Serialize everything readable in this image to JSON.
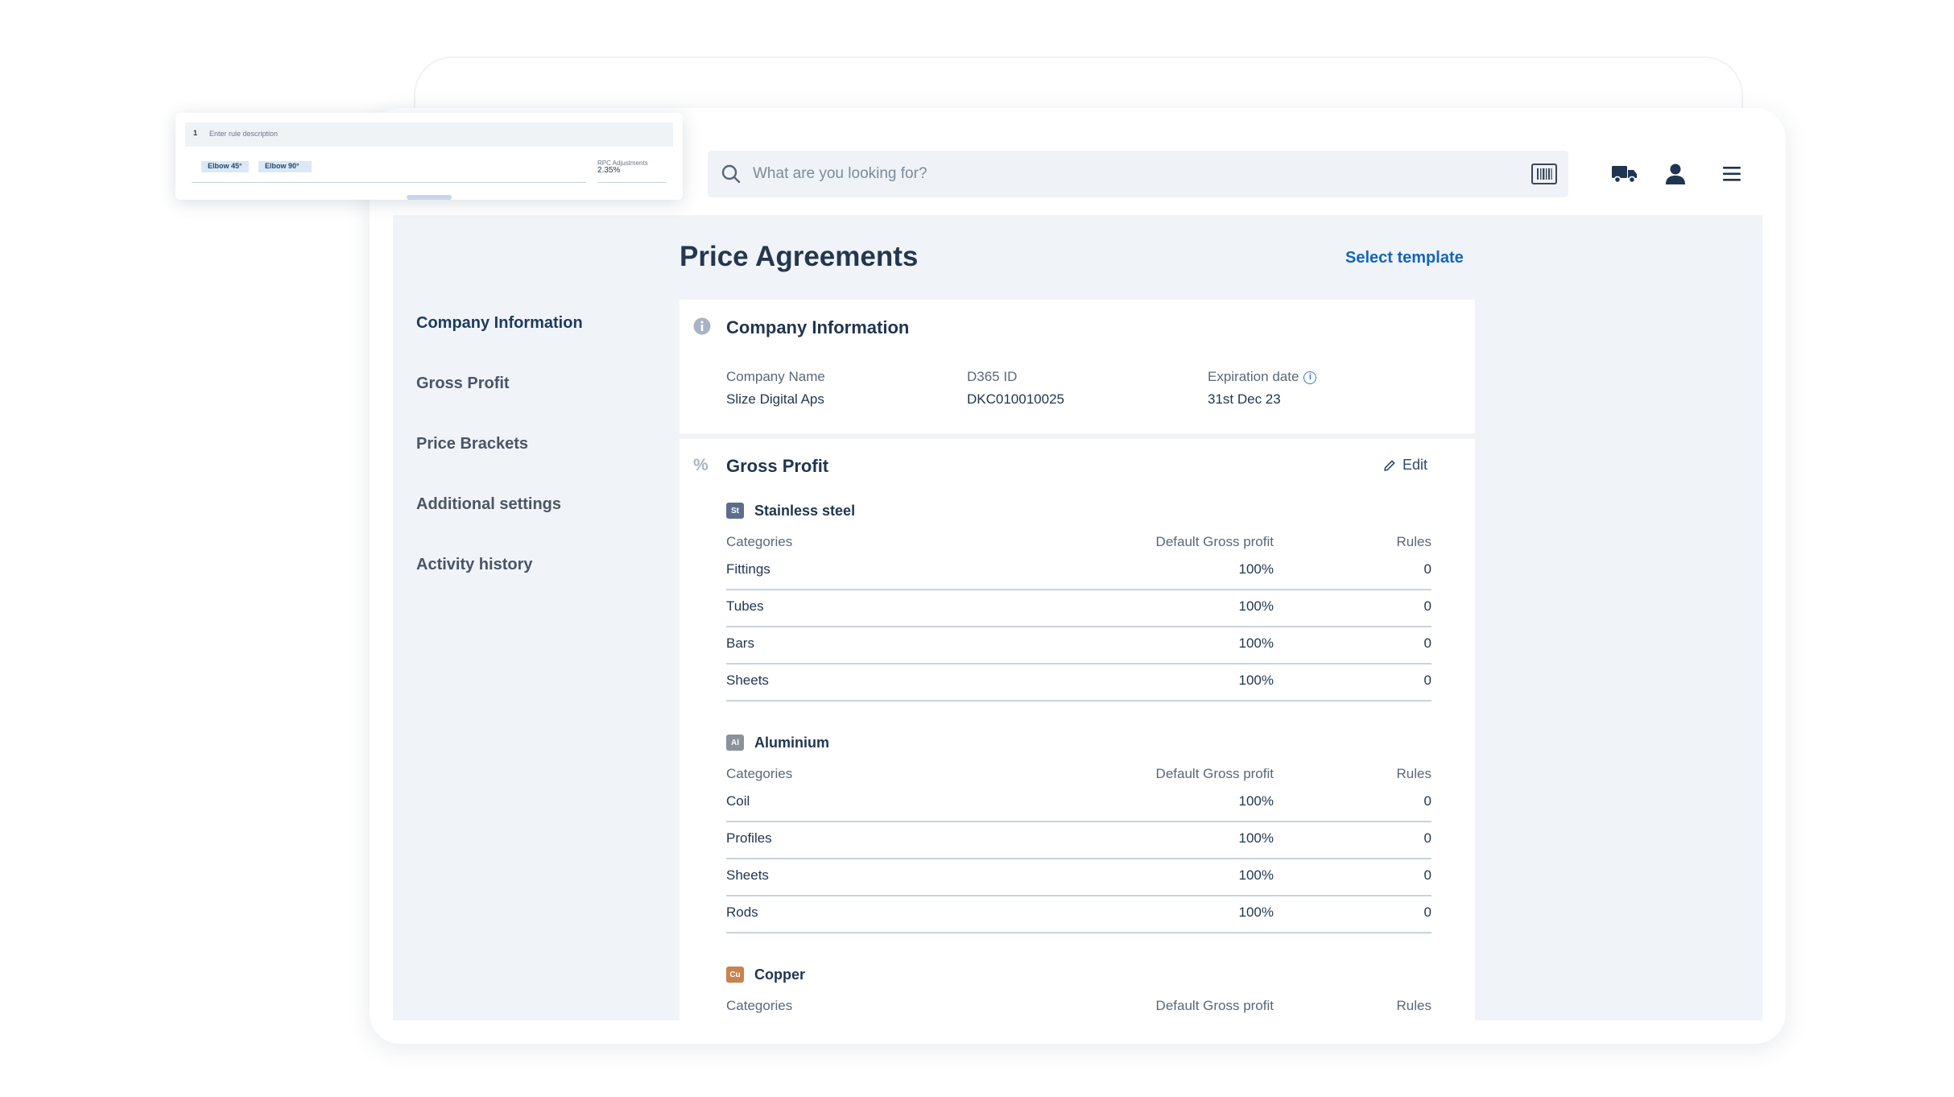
{
  "search": {
    "placeholder": "What are you looking for?"
  },
  "header_icons": [
    "barcode-icon",
    "delivery-truck-icon",
    "user-icon",
    "menu-icon"
  ],
  "sidebar": {
    "items": [
      {
        "label": "Company Information",
        "active": true
      },
      {
        "label": "Gross Profit"
      },
      {
        "label": "Price Brackets"
      },
      {
        "label": "Additional settings"
      },
      {
        "label": "Activity history"
      }
    ]
  },
  "page": {
    "title": "Price Agreements",
    "select_template": "Select template"
  },
  "company": {
    "title": "Company Information",
    "fields": [
      {
        "label": "Company Name",
        "value": "Slize Digital Aps"
      },
      {
        "label": "D365 ID",
        "value": "DKC010010025"
      },
      {
        "label": "Expiration date",
        "value": "31st Dec 23"
      }
    ]
  },
  "gross_profit": {
    "title": "Gross Profit",
    "edit_label": "Edit",
    "columns": [
      "Categories",
      "Default Gross profit",
      "Rules"
    ],
    "materials": [
      {
        "badge": "St",
        "name": "Stainless steel",
        "color": "#5b6f8c",
        "rows": [
          {
            "category": "Fittings",
            "gp": "100%",
            "rules": "0"
          },
          {
            "category": "Tubes",
            "gp": "100%",
            "rules": "0"
          },
          {
            "category": "Bars",
            "gp": "100%",
            "rules": "0"
          },
          {
            "category": "Sheets",
            "gp": "100%",
            "rules": "0"
          }
        ]
      },
      {
        "badge": "Al",
        "name": "Aluminium",
        "color": "#8a929c",
        "rows": [
          {
            "category": "Coil",
            "gp": "100%",
            "rules": "0"
          },
          {
            "category": "Profiles",
            "gp": "100%",
            "rules": "0"
          },
          {
            "category": "Sheets",
            "gp": "100%",
            "rules": "0"
          },
          {
            "category": "Rods",
            "gp": "100%",
            "rules": "0"
          }
        ]
      },
      {
        "badge": "Cu",
        "name": "Copper",
        "color": "#c9814e",
        "rows": []
      }
    ]
  },
  "mini_card": {
    "row_number": "1",
    "row_text": "Enter rule description",
    "chips": [
      "Elbow 45°",
      "Elbow 90°"
    ],
    "adjust_label": "RPC Adjustments",
    "adjust_value": "2.35%"
  }
}
